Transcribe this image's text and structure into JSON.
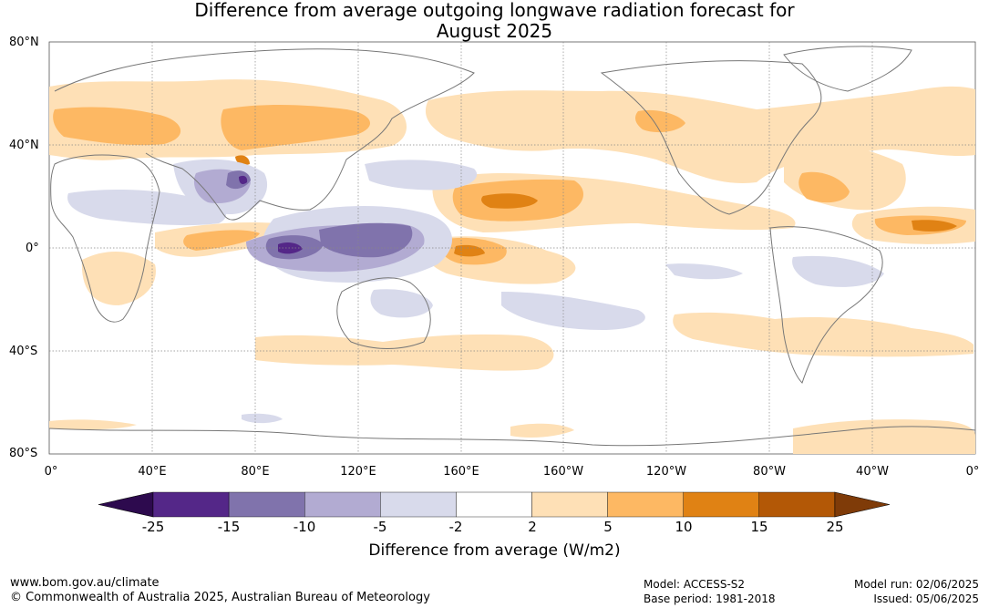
{
  "title_line1": "Difference from average outgoing longwave radiation forecast for",
  "title_line2": "August 2025",
  "lat_labels": [
    "80°N",
    "40°N",
    "0°",
    "40°S",
    "80°S"
  ],
  "lon_labels": [
    "0°",
    "40°E",
    "80°E",
    "120°E",
    "160°E",
    "160°W",
    "120°W",
    "80°W",
    "40°W",
    "0°"
  ],
  "colorbar": {
    "ticks": [
      "-25",
      "-15",
      "-10",
      "-5",
      "-2",
      "2",
      "5",
      "10",
      "15",
      "25"
    ],
    "colors": [
      "#2d0a4e",
      "#542788",
      "#8073ac",
      "#b2abd2",
      "#d8daeb",
      "#ffffff",
      "#fee0b6",
      "#fdb863",
      "#e08214",
      "#b35806",
      "#7f3b08"
    ],
    "title": "Difference from average (W/m2)"
  },
  "footer": {
    "website": "www.bom.gov.au/climate",
    "copyright": "© Commonwealth of Australia 2025, Australian Bureau of Meteorology",
    "model": "Model: ACCESS-S2",
    "base_period": "Base period: 1981-2018",
    "model_run": "Model run: 02/06/2025",
    "issued": "Issued: 05/06/2025"
  }
}
